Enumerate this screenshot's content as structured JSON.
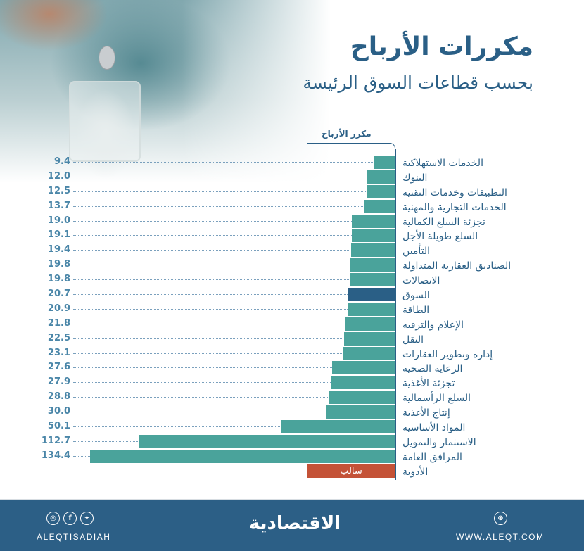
{
  "header": {
    "title": "مكررات الأرباح",
    "subtitle": "بحسب قطاعات السوق الرئيسة"
  },
  "axis": {
    "label": "مكرر الأرباح"
  },
  "chart_data": {
    "type": "bar",
    "orientation": "horizontal",
    "title": "مكررات الأرباح",
    "subtitle": "بحسب قطاعات السوق الرئيسة",
    "xlabel": "مكرر الأرباح",
    "ylabel": "",
    "xlim": [
      0,
      134.4
    ],
    "grid": false,
    "legend": null,
    "categories": [
      "الخدمات الاستهلاكية",
      "البنوك",
      "التطبيقات وخدمات التقنية",
      "الخدمات التجارية والمهنية",
      "تجزئة السلع الكمالية",
      "السلع طويلة الأجل",
      "التأمين",
      "الصناديق العقارية المتداولة",
      "الاتصالات",
      "السوق",
      "الطاقة",
      "الإعلام والترفيه",
      "النقل",
      "إدارة وتطوير العقارات",
      "الرعاية الصحية",
      "تجزئة الأغذية",
      "السلع الرأسمالية",
      "إنتاج الأغذية",
      "المواد الأساسية",
      "الاستثمار والتمويل",
      "المرافق العامة",
      "الأدوية"
    ],
    "values": [
      9.4,
      12.0,
      12.5,
      13.7,
      19.0,
      19.1,
      19.4,
      19.8,
      19.8,
      20.7,
      20.9,
      21.8,
      22.5,
      23.1,
      27.6,
      27.9,
      28.8,
      30.0,
      50.1,
      112.7,
      134.4,
      null
    ],
    "value_labels": [
      "9.4",
      "12.0",
      "12.5",
      "13.7",
      "19.0",
      "19.1",
      "19.4",
      "19.8",
      "19.8",
      "20.7",
      "20.9",
      "21.8",
      "22.5",
      "23.1",
      "27.6",
      "27.9",
      "28.8",
      "30.0",
      "50.1",
      "112.7",
      "134.4",
      "سالب"
    ],
    "annotations": [
      {
        "category": "السوق",
        "note": "highlighted (market average)"
      },
      {
        "category": "الأدوية",
        "note": "سالب (negative)"
      }
    ],
    "colors": {
      "sector": "#4aa39b",
      "market": "#2a5f86",
      "negative": "#c45237"
    }
  },
  "footer": {
    "social_icons": [
      "instagram-icon",
      "facebook-icon",
      "twitter-icon"
    ],
    "handle": "ALEQTISADIAH",
    "logo": "الاقتصادية",
    "web_icon": "globe-icon",
    "website": "WWW.ALEQT.COM",
    "bg_color": "#2c5f86"
  }
}
